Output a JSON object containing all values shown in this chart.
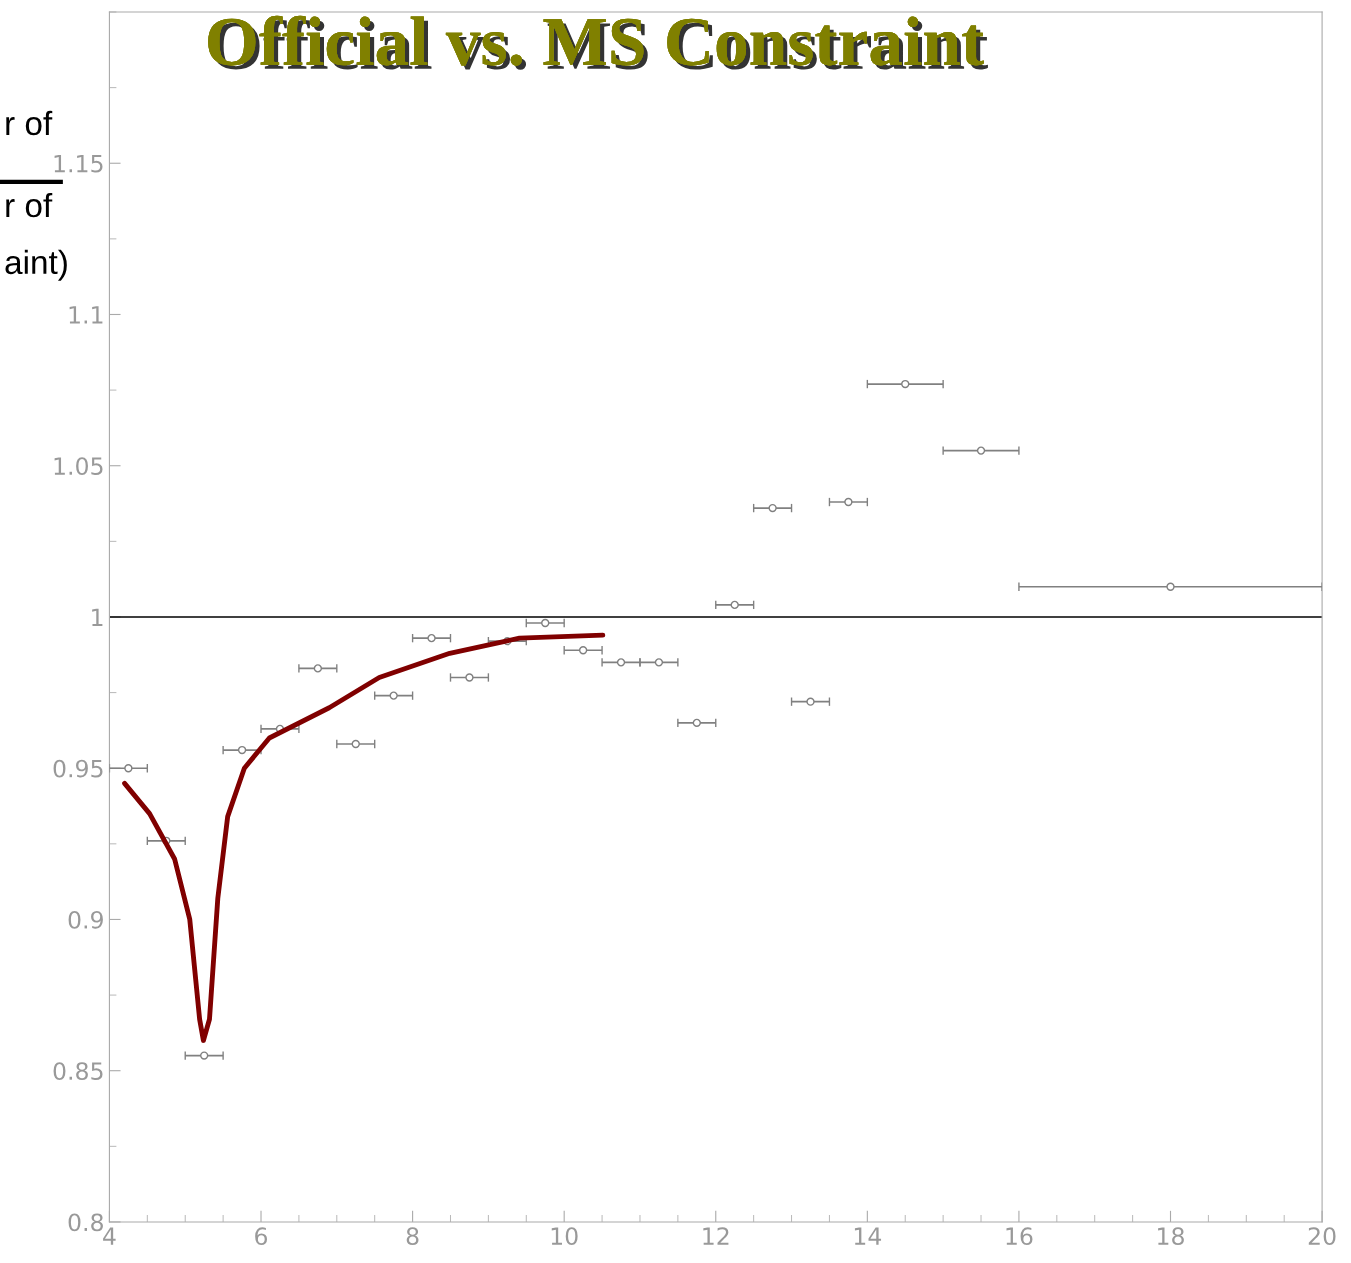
{
  "chart_data": {
    "type": "scatter",
    "title": "Official vs. MS Constraint",
    "annotations": [
      "r of",
      "r of",
      "aint)"
    ],
    "xlim": [
      4,
      20
    ],
    "ylim": [
      0.8,
      1.2
    ],
    "xticks": [
      4,
      6,
      8,
      10,
      12,
      14,
      16,
      18,
      20
    ],
    "yticks": [
      0.8,
      0.85,
      0.9,
      0.95,
      1,
      1.05,
      1.1,
      1.15
    ],
    "grid": false,
    "ref_lines": [
      {
        "axis": "y",
        "value": 1,
        "color": "#000000"
      }
    ],
    "series": [
      {
        "type": "scatter",
        "color": "#808080",
        "marker": "circle",
        "x": [
          4.25,
          4.75,
          5.25,
          5.75,
          6.25,
          6.75,
          7.25,
          7.75,
          8.25,
          8.75,
          9.25,
          9.75,
          10.25,
          10.75,
          11.25,
          11.75,
          12.25,
          12.75,
          13.25,
          13.75,
          14.5,
          15.5,
          18
        ],
        "values": [
          0.95,
          0.926,
          0.855,
          0.956,
          0.963,
          0.983,
          0.958,
          0.974,
          0.993,
          0.98,
          0.992,
          0.998,
          0.989,
          0.985,
          0.985,
          0.965,
          1.004,
          1.036,
          0.972,
          1.038,
          1.077,
          1.055,
          1.01
        ],
        "xerrors": [
          0.25,
          0.25,
          0.25,
          0.25,
          0.25,
          0.25,
          0.25,
          0.25,
          0.25,
          0.25,
          0.25,
          0.25,
          0.25,
          0.25,
          0.25,
          0.25,
          0.25,
          0.25,
          0.25,
          0.25,
          0.5,
          0.5,
          2
        ]
      },
      {
        "type": "line",
        "color": "#800000",
        "marker": "none",
        "x": [
          4.2,
          4.53,
          4.86,
          5.06,
          5.19,
          5.24,
          5.32,
          5.43,
          5.56,
          5.78,
          6.11,
          6.9,
          7.56,
          8.49,
          9.41,
          10.51
        ],
        "values": [
          0.945,
          0.935,
          0.92,
          0.9,
          0.867,
          0.86,
          0.867,
          0.907,
          0.934,
          0.95,
          0.96,
          0.97,
          0.98,
          0.988,
          0.993,
          0.994
        ]
      }
    ]
  }
}
